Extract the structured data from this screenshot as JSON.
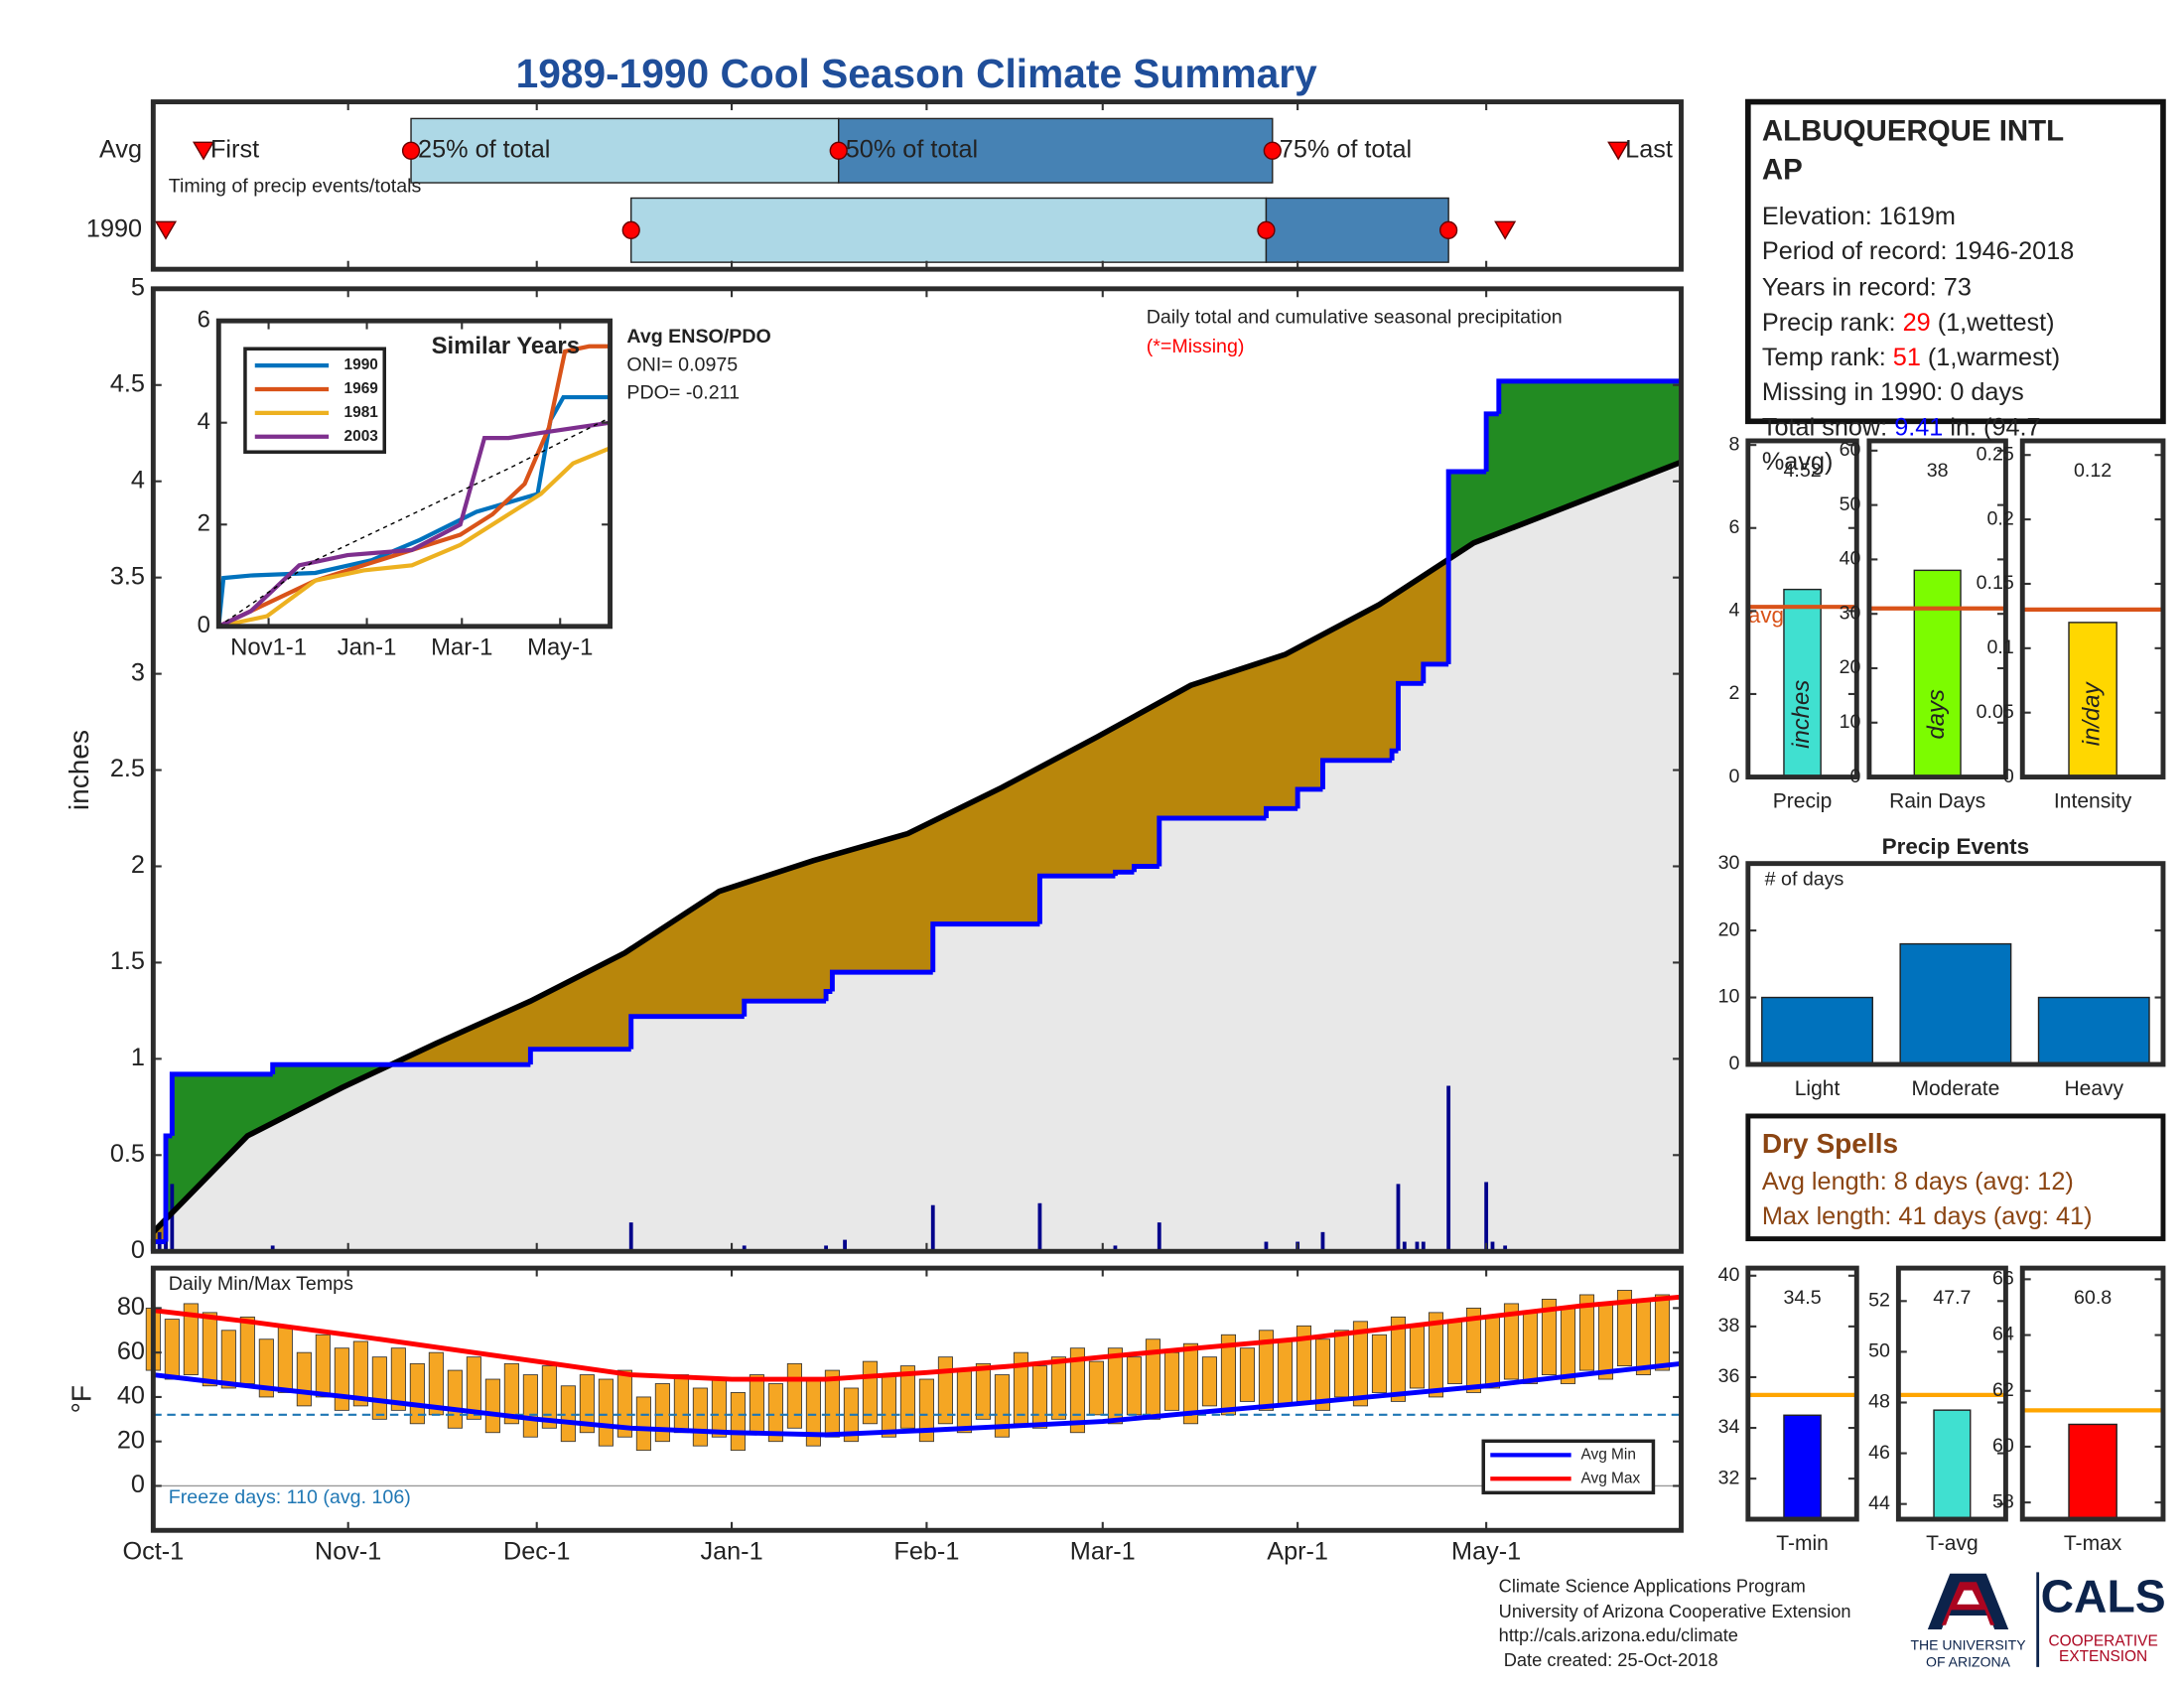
{
  "title": "1989-1990 Cool Season Climate Summary",
  "chart_data": [
    {
      "type": "timeline",
      "note": "Timing of precip events/totals",
      "xlim": [
        0,
        243
      ],
      "marker_labels": [
        "First",
        "25% of total",
        "50% of total",
        "75% of total",
        "Last"
      ],
      "series": [
        {
          "name": "Avg",
          "values": [
            8,
            41,
            109,
            178,
            233
          ]
        },
        {
          "name": "1990",
          "values": [
            2,
            76,
            177,
            206,
            215
          ]
        }
      ],
      "box_colors": [
        "#add8e6",
        "#4682b4"
      ],
      "marker_color": "#ff0000"
    },
    {
      "type": "step_area",
      "annotation": "Daily total and cumulative seasonal precipitation",
      "missing_note": "(*=Missing)",
      "y_label": "inches",
      "xlim": [
        0,
        243
      ],
      "ylim": [
        0,
        5
      ],
      "yticks": [
        0,
        0.5,
        1,
        1.5,
        2,
        2.5,
        3,
        3.5,
        4,
        4.5,
        5
      ],
      "series": [
        {
          "x": [
            0,
            15,
            30,
            45,
            60,
            75,
            90,
            105,
            120,
            135,
            150,
            165,
            180,
            195,
            210,
            225,
            243
          ],
          "values": [
            0.1,
            0.6,
            0.85,
            1.08,
            1.3,
            1.55,
            1.87,
            2.03,
            2.17,
            2.41,
            2.67,
            2.94,
            3.1,
            3.36,
            3.68,
            3.87,
            4.1
          ],
          "color": "#000000"
        },
        {
          "x": [
            0,
            2,
            3,
            19,
            60,
            76,
            94,
            107,
            108,
            124,
            141,
            153,
            156,
            160,
            177,
            182,
            186,
            197,
            198,
            202,
            206,
            212,
            214,
            243
          ],
          "values": [
            0.05,
            0.6,
            0.92,
            0.97,
            1.05,
            1.22,
            1.3,
            1.35,
            1.45,
            1.7,
            1.95,
            1.97,
            2.0,
            2.25,
            2.3,
            2.4,
            2.55,
            2.6,
            2.95,
            3.05,
            4.05,
            4.35,
            4.52,
            4.52
          ],
          "color": "#0000ff"
        }
      ],
      "daily": {
        "x": [
          0,
          1,
          2,
          3,
          19,
          76,
          94,
          107,
          110,
          124,
          141,
          153,
          160,
          177,
          182,
          186,
          198,
          199,
          201,
          202,
          206,
          212,
          213,
          215
        ],
        "values": [
          0.05,
          0.1,
          0.55,
          0.35,
          0.03,
          0.15,
          0.03,
          0.03,
          0.06,
          0.24,
          0.25,
          0.03,
          0.15,
          0.05,
          0.05,
          0.1,
          0.35,
          0.05,
          0.05,
          0.05,
          0.86,
          0.36,
          0.05,
          0.03
        ],
        "color": "#00008b"
      },
      "above_color": "#228b22",
      "below_color": "#b8860b",
      "base_color": "#e8e8e8"
    },
    {
      "type": "line",
      "title": "Similar Years",
      "notes": [
        "Avg ENSO/PDO",
        "ONI= 0.0975",
        "PDO= -0.211"
      ],
      "xlim": [
        0,
        243
      ],
      "ylim": [
        0,
        6
      ],
      "yticks": [
        0,
        2,
        4,
        6
      ],
      "xticks": [
        {
          "value": 31,
          "label": "Nov1-1"
        },
        {
          "value": 92,
          "label": "Jan-1"
        },
        {
          "value": 151,
          "label": "Mar-1"
        },
        {
          "value": 212,
          "label": "May-1"
        }
      ],
      "series": [
        {
          "name": "1990",
          "color": "#0072bd",
          "x": [
            0,
            3,
            20,
            60,
            95,
            125,
            160,
            198,
            206,
            214,
            243
          ],
          "values": [
            0,
            0.95,
            1.0,
            1.05,
            1.3,
            1.7,
            2.25,
            2.6,
            4.05,
            4.5,
            4.5
          ]
        },
        {
          "name": "1969",
          "color": "#d95319",
          "x": [
            0,
            20,
            40,
            60,
            90,
            120,
            140,
            150,
            170,
            190,
            205,
            215,
            230,
            243
          ],
          "values": [
            0,
            0.3,
            0.6,
            0.9,
            1.2,
            1.5,
            1.7,
            1.8,
            2.2,
            2.8,
            3.9,
            5.4,
            5.5,
            5.5
          ]
        },
        {
          "name": "1981",
          "color": "#edb120",
          "x": [
            0,
            30,
            60,
            90,
            120,
            150,
            180,
            200,
            220,
            243
          ],
          "values": [
            0,
            0.2,
            0.9,
            1.1,
            1.2,
            1.6,
            2.2,
            2.6,
            3.2,
            3.5
          ]
        },
        {
          "name": "2003",
          "color": "#7e2f8e",
          "x": [
            0,
            20,
            50,
            80,
            120,
            150,
            165,
            180,
            200,
            243
          ],
          "values": [
            0,
            0.3,
            1.2,
            1.4,
            1.5,
            2.0,
            3.7,
            3.7,
            3.8,
            4.0
          ]
        },
        {
          "color": "#000000",
          "dash": true,
          "x": [
            0,
            60,
            120,
            180,
            243
          ],
          "values": [
            0,
            1.3,
            2.2,
            3.1,
            4.1
          ]
        }
      ]
    },
    {
      "type": "bar",
      "categories": [
        "Precip"
      ],
      "values": [
        4.52
      ],
      "avg": 4.1,
      "avg_label": "avg",
      "unit": "inches",
      "ylim": [
        0,
        8.1
      ],
      "yticks": [
        0,
        2,
        4,
        6,
        8
      ],
      "color": "#40e0d0",
      "avg_color": "#d95319"
    },
    {
      "type": "bar",
      "categories": [
        "Rain Days"
      ],
      "values": [
        38
      ],
      "avg": 31,
      "unit": "days",
      "ylim": [
        0,
        61.8
      ],
      "yticks": [
        0,
        10,
        20,
        30,
        40,
        50,
        60
      ],
      "color": "#7cfc00",
      "avg_color": "#d95319"
    },
    {
      "type": "bar",
      "categories": [
        "Intensity"
      ],
      "values": [
        0.12
      ],
      "avg": 0.13,
      "unit": "in/day",
      "ylim": [
        0,
        0.261
      ],
      "yticks": [
        0,
        0.05,
        0.1,
        0.15,
        0.2,
        0.25
      ],
      "color": "#ffd700",
      "avg_color": "#d95319"
    },
    {
      "type": "bar",
      "title": "Precip Events",
      "annotation": "# of days",
      "categories": [
        "Light",
        "Moderate",
        "Heavy"
      ],
      "values": [
        10,
        18,
        10
      ],
      "ylim": [
        0,
        30
      ],
      "yticks": [
        0,
        10,
        20,
        30
      ],
      "color": "#0072bd"
    },
    {
      "type": "range_bar",
      "title": "Daily Min/Max Temps",
      "y_label": "°F",
      "freeze_label": "Freeze days: 110 (avg. 106)",
      "freeze": 32,
      "freeze_color": "#1f77b4",
      "xlim": [
        0,
        243
      ],
      "ylim": [
        -20,
        98
      ],
      "yticks": [
        0,
        20,
        40,
        60,
        80
      ],
      "xticks": [
        {
          "value": 0,
          "label": "Oct-1"
        },
        {
          "value": 31,
          "label": "Nov-1"
        },
        {
          "value": 61,
          "label": "Dec-1"
        },
        {
          "value": 92,
          "label": "Jan-1"
        },
        {
          "value": 123,
          "label": "Feb-1"
        },
        {
          "value": 151,
          "label": "Mar-1"
        },
        {
          "value": 182,
          "label": "Apr-1"
        },
        {
          "value": 212,
          "label": "May-1"
        }
      ],
      "x": [
        0,
        3,
        6,
        9,
        12,
        15,
        18,
        21,
        24,
        27,
        30,
        33,
        36,
        39,
        42,
        45,
        48,
        51,
        54,
        57,
        60,
        63,
        66,
        69,
        72,
        75,
        78,
        81,
        84,
        87,
        90,
        93,
        96,
        99,
        102,
        105,
        108,
        111,
        114,
        117,
        120,
        123,
        126,
        129,
        132,
        135,
        138,
        141,
        144,
        147,
        150,
        153,
        156,
        159,
        162,
        165,
        168,
        171,
        174,
        177,
        180,
        183,
        186,
        189,
        192,
        195,
        198,
        201,
        204,
        207,
        210,
        213,
        216,
        219,
        222,
        225,
        228,
        231,
        234,
        237,
        240
      ],
      "max": [
        80,
        75,
        82,
        78,
        70,
        76,
        66,
        72,
        60,
        68,
        62,
        65,
        58,
        62,
        55,
        60,
        52,
        58,
        48,
        55,
        50,
        54,
        45,
        50,
        48,
        52,
        40,
        46,
        50,
        44,
        48,
        42,
        50,
        46,
        55,
        48,
        52,
        44,
        56,
        50,
        54,
        48,
        58,
        52,
        55,
        50,
        60,
        54,
        58,
        62,
        56,
        62,
        58,
        66,
        60,
        64,
        58,
        68,
        62,
        70,
        66,
        72,
        66,
        70,
        74,
        68,
        76,
        72,
        78,
        74,
        80,
        76,
        82,
        78,
        84,
        80,
        86,
        82,
        88,
        84,
        86
      ],
      "min": [
        52,
        48,
        50,
        45,
        44,
        46,
        40,
        42,
        36,
        40,
        34,
        36,
        30,
        34,
        28,
        32,
        26,
        30,
        24,
        28,
        22,
        26,
        20,
        24,
        18,
        22,
        16,
        20,
        24,
        18,
        22,
        16,
        24,
        20,
        26,
        18,
        22,
        20,
        28,
        22,
        26,
        20,
        28,
        24,
        30,
        22,
        28,
        26,
        30,
        24,
        32,
        28,
        32,
        30,
        34,
        28,
        36,
        32,
        38,
        34,
        36,
        38,
        34,
        40,
        36,
        42,
        38,
        44,
        40,
        46,
        42,
        44,
        48,
        46,
        50,
        46,
        52,
        48,
        54,
        50,
        52
      ],
      "color": "#f5a623",
      "series": [
        {
          "name": "Avg Min",
          "color": "#0000ff",
          "x": [
            0,
            15,
            31,
            46,
            61,
            76,
            92,
            107,
            123,
            137,
            151,
            166,
            182,
            197,
            212,
            227,
            243
          ],
          "values": [
            50,
            45,
            40,
            35,
            30,
            26,
            24,
            23,
            25,
            27,
            29,
            33,
            37,
            41,
            45,
            50,
            55
          ]
        },
        {
          "name": "Avg Max",
          "color": "#ff0000",
          "x": [
            0,
            15,
            31,
            46,
            61,
            76,
            92,
            107,
            123,
            137,
            151,
            166,
            182,
            197,
            212,
            227,
            243
          ],
          "values": [
            79,
            74,
            68,
            62,
            56,
            50,
            48,
            48,
            51,
            54,
            58,
            62,
            66,
            71,
            76,
            81,
            85
          ]
        }
      ]
    },
    {
      "type": "bar",
      "categories": [
        "T-min"
      ],
      "values": [
        34.5
      ],
      "avg": 35.3,
      "ylim": [
        30.4,
        40.3
      ],
      "yticks": [
        32,
        34,
        36,
        38,
        40
      ],
      "color": "#0000ff",
      "avg_color": "#ffa500"
    },
    {
      "type": "bar",
      "categories": [
        "T-avg"
      ],
      "values": [
        47.7
      ],
      "avg": 48.3,
      "ylim": [
        43.4,
        53.3
      ],
      "yticks": [
        44,
        46,
        48,
        50,
        52
      ],
      "color": "#40e0d0",
      "avg_color": "#ffa500"
    },
    {
      "type": "bar",
      "categories": [
        "T-max"
      ],
      "values": [
        60.8
      ],
      "avg": 61.3,
      "ylim": [
        57.4,
        66.4
      ],
      "yticks": [
        58,
        60,
        62,
        64,
        66
      ],
      "color": "#ff0000",
      "avg_color": "#ffa500"
    }
  ],
  "station": {
    "name_lines": [
      "ALBUQUERQUE INTL",
      "AP"
    ],
    "elevation": "Elevation: 1619m",
    "period": "Period of record: 1946-2018",
    "years": "Years in record: 73",
    "precip_rank": {
      "label": "Precip rank: ",
      "rank": "29",
      "note": " (1,wettest)"
    },
    "temp_rank": {
      "label": "Temp rank: ",
      "rank": "51",
      "note": " (1,warmest)"
    },
    "missing": "Missing in 1990: 0 days",
    "snow": {
      "label": "Total snow: ",
      "value": "9.41",
      "rest": " in. (94.7",
      "rest2": "%avg)"
    }
  },
  "dry_spells": {
    "title": "Dry Spells",
    "lines": [
      "Avg length: 8 days (avg: 12)",
      "Max length: 41 days (avg: 41)"
    ]
  },
  "footer": {
    "lines": [
      "Climate Science Applications Program",
      "University of Arizona Cooperative Extension",
      "http://cals.arizona.edu/climate",
      " Date created: 25-Oct-2018"
    ]
  },
  "logos": {
    "university": [
      "THE UNIVERSITY",
      "OF ARIZONA"
    ],
    "cals": "CALS",
    "extension": [
      "COOPERATIVE",
      "EXTENSION"
    ]
  }
}
